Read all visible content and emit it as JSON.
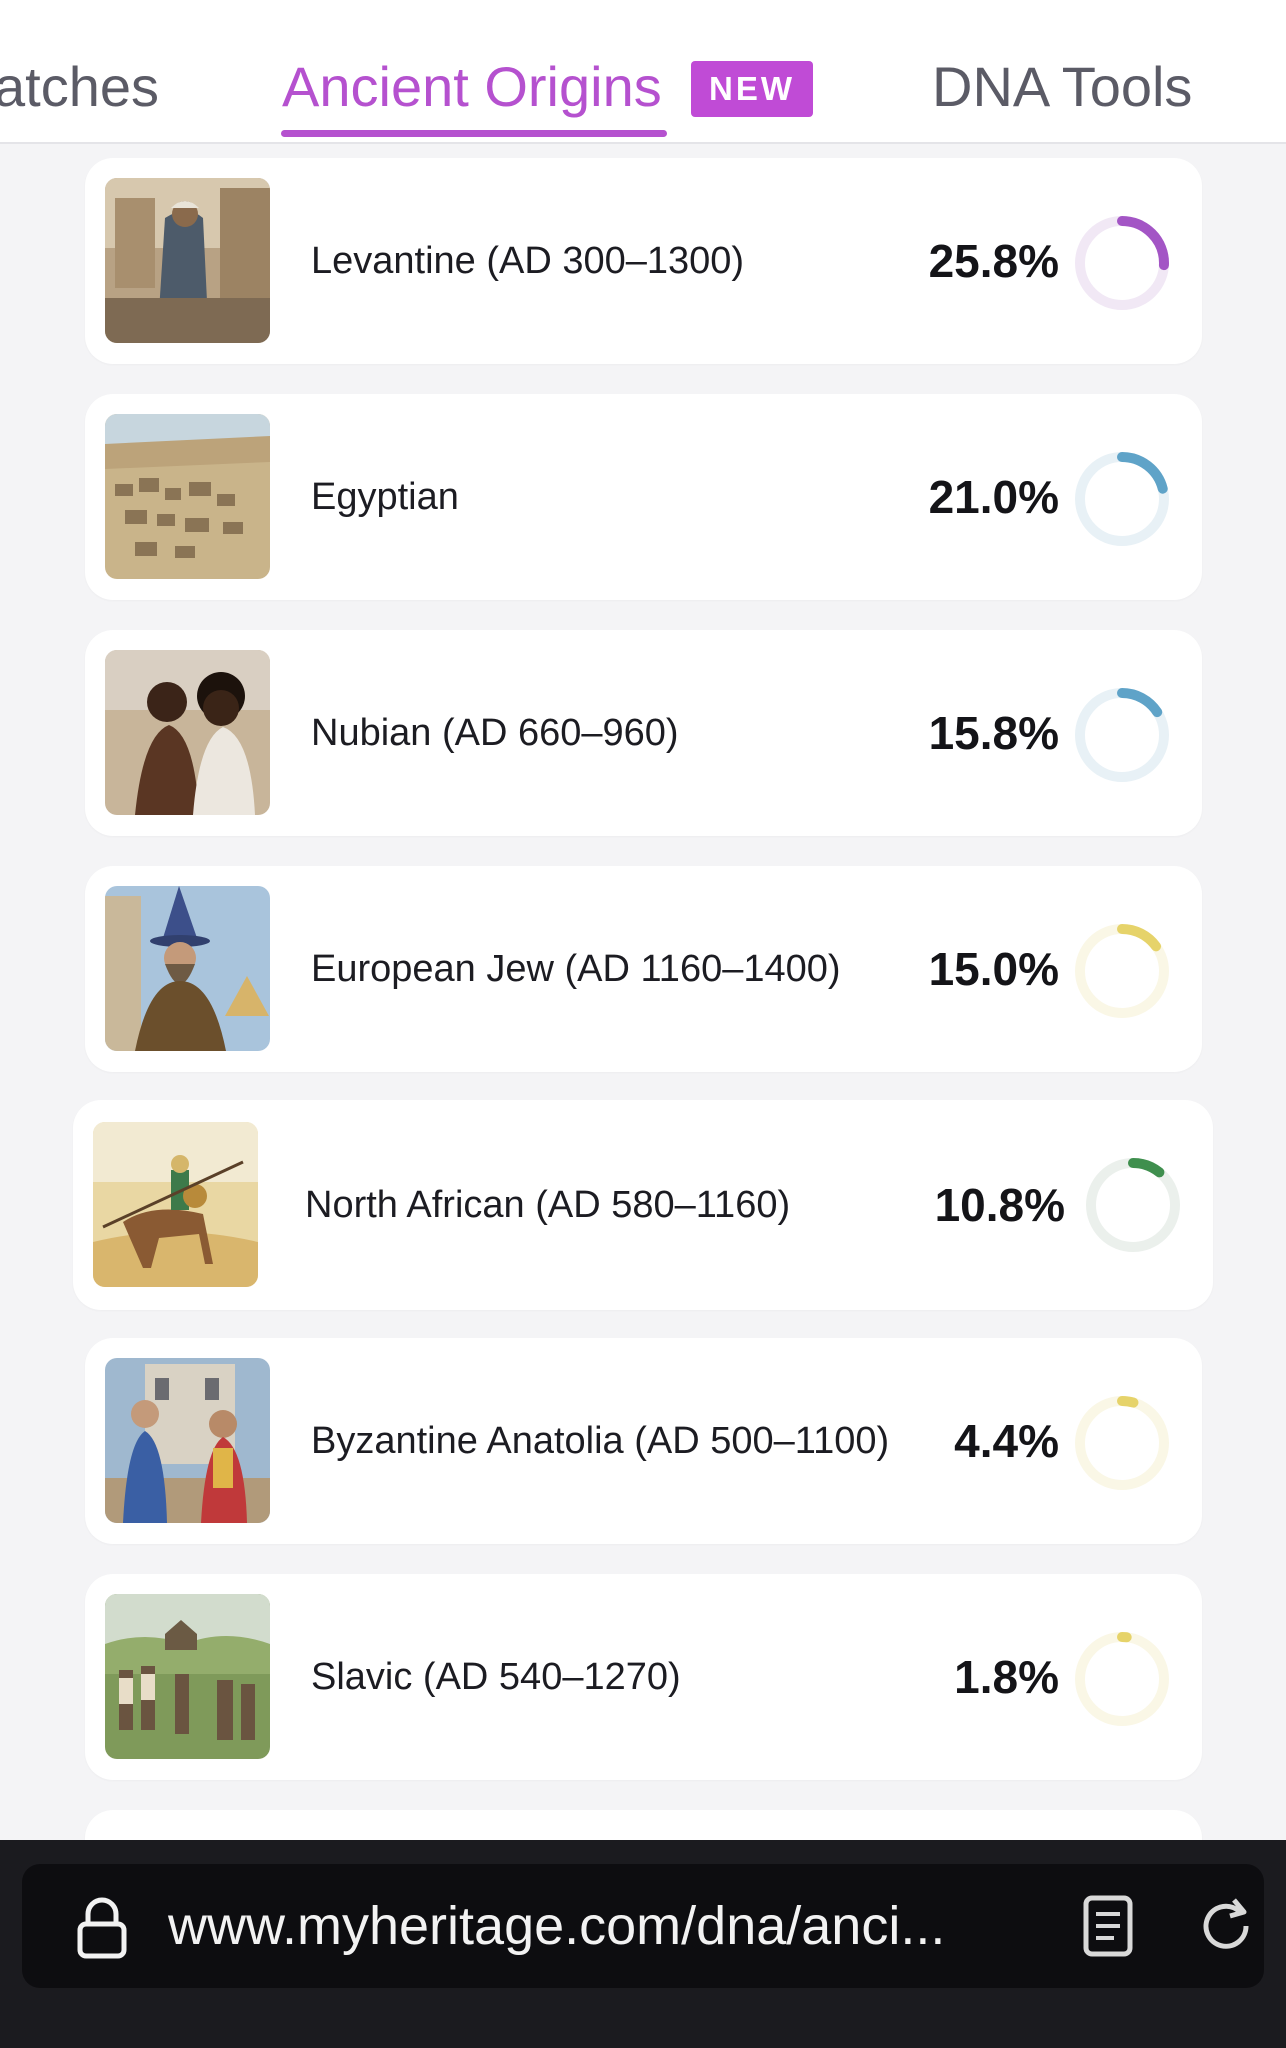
{
  "tabs": {
    "matches": "atches",
    "active": "Ancient Origins",
    "badge": "NEW",
    "dna_tools": "DNA Tools"
  },
  "origins": [
    {
      "label": "Levantine (AD 300–1300)",
      "percent_text": "25.8%",
      "percent": 25.8,
      "color": "#a355c5",
      "track": "#f1e8f5",
      "icon": "levantine-thumbnail"
    },
    {
      "label": "Egyptian",
      "percent_text": "21.0%",
      "percent": 21.0,
      "color": "#5fa3c8",
      "track": "#e8f1f6",
      "icon": "egyptian-thumbnail"
    },
    {
      "label": "Nubian (AD 660–960)",
      "percent_text": "15.8%",
      "percent": 15.8,
      "color": "#5fa3c8",
      "track": "#e8f1f6",
      "icon": "nubian-thumbnail"
    },
    {
      "label": "European Jew (AD 1160–1400)",
      "percent_text": "15.0%",
      "percent": 15.0,
      "color": "#e6d36a",
      "track": "#faf7e6",
      "icon": "european-jew-thumbnail"
    },
    {
      "label": "North African (AD 580–1160)",
      "percent_text": "10.8%",
      "percent": 10.8,
      "color": "#3f8f4e",
      "track": "#ebf0ec",
      "icon": "north-african-thumbnail"
    },
    {
      "label": "Byzantine Anatolia (AD 500–1100)",
      "percent_text": "4.4%",
      "percent": 4.4,
      "color": "#e6d36a",
      "track": "#faf7e6",
      "icon": "byzantine-anatolia-thumbnail"
    },
    {
      "label": "Slavic (AD 540–1270)",
      "percent_text": "1.8%",
      "percent": 1.8,
      "color": "#e6d36a",
      "track": "#faf7e6",
      "icon": "slavic-thumbnail"
    }
  ],
  "browser": {
    "url": "www.myheritage.com/dna/anci...",
    "icons": [
      "lock-icon",
      "reader-view-icon",
      "reload-icon"
    ]
  }
}
